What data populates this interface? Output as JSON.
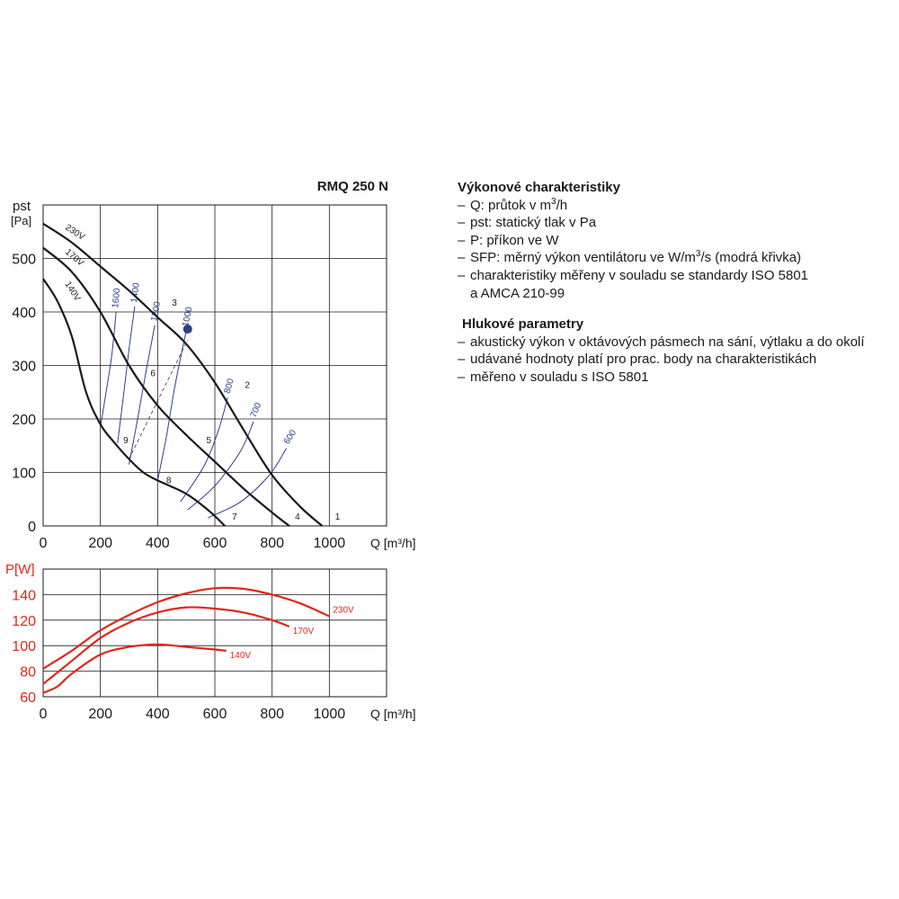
{
  "model_title": "RMQ 250 N",
  "performance_notes": {
    "heading": "Výkonové charakteristiky",
    "items": [
      {
        "before": "Q: průtok v m",
        "sup": "3",
        "after": "/h"
      },
      {
        "before": "pst: statický tlak v Pa",
        "sup": "",
        "after": ""
      },
      {
        "before": "P: příkon ve W",
        "sup": "",
        "after": ""
      },
      {
        "before": "SFP: měrný výkon ventilátoru ve W/m",
        "sup": "3",
        "after": "/s (modrá křivka)"
      },
      {
        "before": "charakteristiky měřeny v souladu se standardy ISO 5801",
        "sup": "",
        "after": ""
      }
    ],
    "continuation": "a AMCA 210-99"
  },
  "noise_notes": {
    "heading": "Hlukové parametry",
    "items": [
      "akustický výkon v oktávových pásmech na sání, výtlaku a do okolí",
      "udávané hodnoty platí pro prac. body na charakteristikách",
      "měřeno v souladu s ISO 5801"
    ]
  },
  "chart_data": [
    {
      "type": "line",
      "title": "RMQ 250 N",
      "ylabel": "pst [Pa]",
      "xlabel": "Q [m³/h]",
      "xlim": [
        0,
        1200
      ],
      "ylim": [
        0,
        600
      ],
      "x_ticks": [
        0,
        200,
        400,
        600,
        800,
        1000
      ],
      "y_ticks": [
        0,
        100,
        200,
        300,
        400,
        500
      ],
      "grid": true,
      "series": [
        {
          "name": "230V",
          "color": "#1a1a1a",
          "points": [
            [
              0,
              565
            ],
            [
              100,
              530
            ],
            [
              200,
              485
            ],
            [
              300,
              440
            ],
            [
              400,
              390
            ],
            [
              500,
              340
            ],
            [
              600,
              268
            ],
            [
              700,
              180
            ],
            [
              800,
              95
            ],
            [
              900,
              35
            ],
            [
              975,
              0
            ]
          ]
        },
        {
          "name": "170V",
          "color": "#1a1a1a",
          "points": [
            [
              0,
              520
            ],
            [
              100,
              475
            ],
            [
              200,
              400
            ],
            [
              300,
              300
            ],
            [
              400,
              225
            ],
            [
              500,
              170
            ],
            [
              600,
              120
            ],
            [
              700,
              70
            ],
            [
              800,
              25
            ],
            [
              860,
              0
            ]
          ]
        },
        {
          "name": "140V",
          "color": "#1a1a1a",
          "points": [
            [
              0,
              462
            ],
            [
              50,
              420
            ],
            [
              100,
              355
            ],
            [
              150,
              250
            ],
            [
              200,
              190
            ],
            [
              250,
              155
            ],
            [
              300,
              125
            ],
            [
              350,
              100
            ],
            [
              400,
              85
            ],
            [
              500,
              60
            ],
            [
              580,
              28
            ],
            [
              635,
              0
            ]
          ]
        }
      ],
      "sfp_curves": {
        "color": "#2b3f8c",
        "curves": [
          {
            "label": "1600",
            "points": [
              [
                200,
                185
              ],
              [
                220,
                250
              ],
              [
                240,
                320
              ],
              [
                255,
                400
              ]
            ]
          },
          {
            "label": "1400",
            "points": [
              [
                260,
                155
              ],
              [
                280,
                240
              ],
              [
                300,
                330
              ],
              [
                320,
                410
              ]
            ]
          },
          {
            "label": "1200",
            "points": [
              [
                300,
                115
              ],
              [
                330,
                200
              ],
              [
                360,
                290
              ],
              [
                390,
                375
              ]
            ]
          },
          {
            "label": "1000",
            "points": [
              [
                400,
                85
              ],
              [
                430,
                165
              ],
              [
                460,
                260
              ],
              [
                500,
                365
              ]
            ]
          },
          {
            "label": "800",
            "points": [
              [
                480,
                45
              ],
              [
                560,
                110
              ],
              [
                610,
                175
              ],
              [
                645,
                240
              ]
            ]
          },
          {
            "label": "700",
            "points": [
              [
                505,
                30
              ],
              [
                600,
                75
              ],
              [
                690,
                140
              ],
              [
                735,
                195
              ]
            ]
          },
          {
            "label": "600",
            "points": [
              [
                575,
                15
              ],
              [
                690,
                45
              ],
              [
                790,
                95
              ],
              [
                850,
                145
              ]
            ]
          }
        ]
      },
      "operating_point": {
        "x": 505,
        "y": 368,
        "color": "#2b3f8c"
      },
      "point_labels": [
        {
          "label": "1",
          "x": 1020,
          "y": 12
        },
        {
          "label": "2",
          "x": 705,
          "y": 258
        },
        {
          "label": "3",
          "x": 450,
          "y": 412
        },
        {
          "label": "4",
          "x": 880,
          "y": 12
        },
        {
          "label": "5",
          "x": 570,
          "y": 155
        },
        {
          "label": "6",
          "x": 375,
          "y": 280
        },
        {
          "label": "7",
          "x": 660,
          "y": 12
        },
        {
          "label": "8",
          "x": 430,
          "y": 80
        },
        {
          "label": "9",
          "x": 280,
          "y": 155
        }
      ],
      "y_label_top": "pst",
      "y_label_unit": "[Pa]"
    },
    {
      "type": "line",
      "ylabel": "P[W]",
      "xlabel": "Q [m³/h]",
      "xlim": [
        0,
        1200
      ],
      "ylim": [
        60,
        160
      ],
      "x_ticks": [
        0,
        200,
        400,
        600,
        800,
        1000
      ],
      "y_ticks": [
        60,
        80,
        100,
        120,
        140
      ],
      "grid": true,
      "color": "#e0271b",
      "series": [
        {
          "name": "230V",
          "points": [
            [
              0,
              82
            ],
            [
              100,
              96
            ],
            [
              200,
              112
            ],
            [
              300,
              124
            ],
            [
              400,
              134
            ],
            [
              500,
              141
            ],
            [
              600,
              145
            ],
            [
              700,
              144.5
            ],
            [
              800,
              140
            ],
            [
              900,
              133
            ],
            [
              1000,
              123
            ]
          ]
        },
        {
          "name": "170V",
          "points": [
            [
              0,
              70
            ],
            [
              100,
              88
            ],
            [
              200,
              106
            ],
            [
              300,
              118
            ],
            [
              400,
              126
            ],
            [
              500,
              130
            ],
            [
              600,
              129
            ],
            [
              700,
              126
            ],
            [
              800,
              120
            ],
            [
              860,
              115
            ]
          ]
        },
        {
          "name": "140V",
          "points": [
            [
              0,
              63
            ],
            [
              50,
              68
            ],
            [
              100,
              78
            ],
            [
              200,
              93
            ],
            [
              300,
              99
            ],
            [
              400,
              101
            ],
            [
              500,
              99
            ],
            [
              600,
              97
            ],
            [
              640,
              96
            ]
          ]
        }
      ],
      "y_label_top": "P[W]"
    }
  ]
}
